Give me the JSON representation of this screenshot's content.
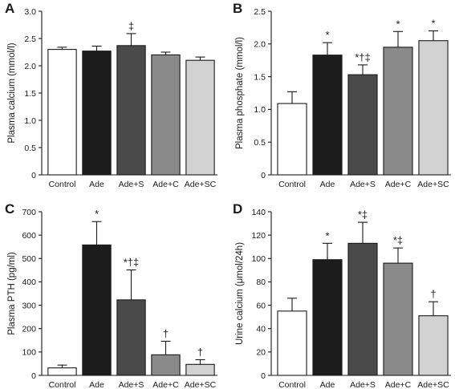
{
  "figure": {
    "bar_colors": [
      "#ffffff",
      "#1c1c1c",
      "#4a4a4a",
      "#8a8a8a",
      "#d2d2d2"
    ],
    "axis_color": "#1a1a1a"
  },
  "chart_data": [
    {
      "type": "bar",
      "panel": "A",
      "ylabel": "Plasma calcium (mmol/l)",
      "categories": [
        "Control",
        "Ade",
        "Ade+S",
        "Ade+C",
        "Ade+SC"
      ],
      "values": [
        2.3,
        2.27,
        2.37,
        2.2,
        2.1
      ],
      "errors": [
        0.04,
        0.09,
        0.22,
        0.05,
        0.06
      ],
      "annotations": [
        "",
        "",
        "‡",
        "",
        ""
      ],
      "ylim": [
        0,
        3.0
      ],
      "yticks": [
        "0",
        "0.5",
        "1.0",
        "1.5",
        "2.0",
        "2.5",
        "3.0"
      ],
      "grid": false
    },
    {
      "type": "bar",
      "panel": "B",
      "ylabel": "Plasma phosphate (mmol/l)",
      "categories": [
        "Control",
        "Ade",
        "Ade+S",
        "Ade+C",
        "Ade+SC"
      ],
      "values": [
        1.09,
        1.83,
        1.53,
        1.95,
        2.05
      ],
      "errors": [
        0.18,
        0.19,
        0.15,
        0.24,
        0.15
      ],
      "annotations": [
        "",
        "*",
        "*†‡",
        "*",
        "*"
      ],
      "ylim": [
        0,
        2.5
      ],
      "yticks": [
        "0",
        "0.5",
        "1.0",
        "1.5",
        "2.0",
        "2.5"
      ],
      "grid": false
    },
    {
      "type": "bar",
      "panel": "C",
      "ylabel": "Plasma PTH (pg/ml)",
      "categories": [
        "Control",
        "Ade",
        "Ade+S",
        "Ade+C",
        "Ade+SC"
      ],
      "values": [
        32,
        558,
        323,
        88,
        47
      ],
      "errors": [
        12,
        100,
        128,
        58,
        20
      ],
      "annotations": [
        "",
        "*",
        "*†‡",
        "†",
        "†"
      ],
      "ylim": [
        0,
        700
      ],
      "yticks": [
        "0",
        "100",
        "200",
        "300",
        "400",
        "500",
        "600",
        "700"
      ],
      "grid": false
    },
    {
      "type": "bar",
      "panel": "D",
      "ylabel": "Urine calcium (μmol/24h)",
      "categories": [
        "Control",
        "Ade",
        "Ade+S",
        "Ade+C",
        "Ade+SC"
      ],
      "values": [
        55,
        99,
        113,
        96,
        51
      ],
      "errors": [
        11,
        14,
        18,
        13,
        12
      ],
      "annotations": [
        "",
        "*",
        "*‡",
        "*‡",
        "†"
      ],
      "ylim": [
        0,
        140
      ],
      "yticks": [
        "0",
        "20",
        "40",
        "60",
        "80",
        "100",
        "120",
        "140"
      ],
      "grid": false
    }
  ]
}
